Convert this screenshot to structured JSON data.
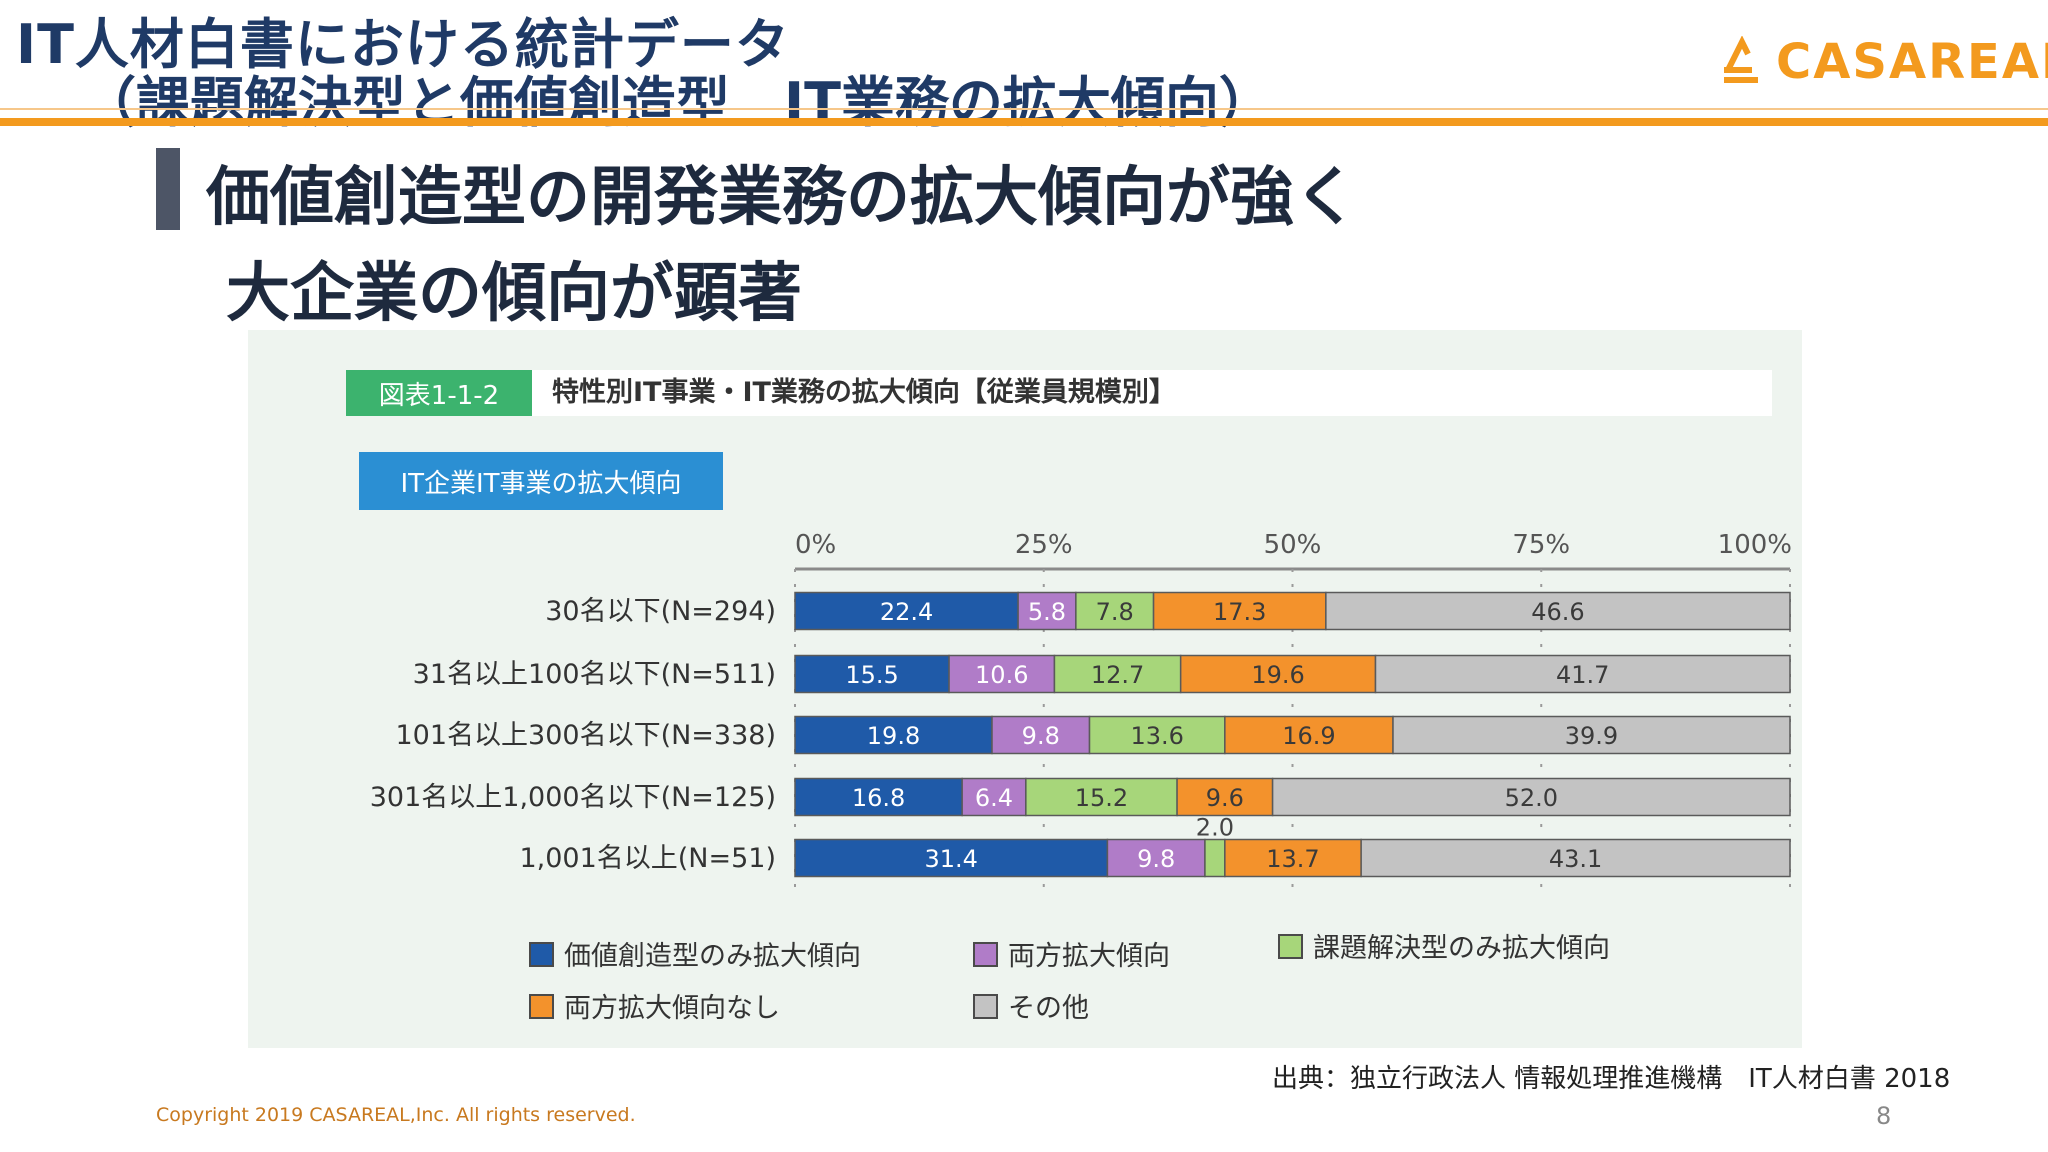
{
  "header": {
    "title_line1": "IT人材白書における統計データ",
    "title_line2": "（課題解決型と価値創造型　IT業務の拡大傾向）",
    "logo_text": "CASAREAL"
  },
  "headline": {
    "line1": "価値創造型の開発業務の拡大傾向が強く",
    "line2": "大企業の傾向が顕著"
  },
  "figure": {
    "tag": "図表1-1-2",
    "title": "特性別IT事業・IT業務の拡大傾向【従業員規模別】",
    "subtitle_tag": "IT企業IT事業の拡大傾向"
  },
  "chart_data": {
    "type": "bar",
    "orientation": "horizontal",
    "stacked": true,
    "percent_stacked": true,
    "xlim": [
      0,
      100
    ],
    "x_ticks": [
      "0%",
      "25%",
      "50%",
      "75%",
      "100%"
    ],
    "categories": [
      "30名以下(N=294)",
      "31名以上100名以下(N=511)",
      "101名以上300名以下(N=338)",
      "301名以上1,000名以下(N=125)",
      "1,001名以上(N=51)"
    ],
    "series": [
      {
        "name": "価値創造型のみ拡大傾向",
        "color": "#1f5aa8",
        "values": [
          22.4,
          15.5,
          19.8,
          16.8,
          31.4
        ],
        "labels": [
          "22.4",
          "15.5",
          "19.8",
          "16.8",
          "31.4"
        ]
      },
      {
        "name": "両方拡大傾向",
        "color": "#b07cc8",
        "values": [
          5.8,
          10.6,
          9.8,
          6.4,
          9.8
        ],
        "labels": [
          "5.8",
          "10.6",
          "9.8",
          "6.4",
          "9.8"
        ]
      },
      {
        "name": "課題解決型のみ拡大傾向",
        "color": "#a7d67a",
        "values": [
          7.8,
          12.7,
          13.6,
          15.2,
          2.0
        ],
        "labels": [
          "7.8",
          "12.7",
          "13.6",
          "15.2",
          "2.0"
        ]
      },
      {
        "name": "両方拡大傾向なし",
        "color": "#f3922c",
        "values": [
          17.3,
          19.6,
          16.9,
          9.6,
          13.7
        ],
        "labels": [
          "17.3",
          "19.6",
          "16.9",
          "9.6",
          "13.7"
        ]
      },
      {
        "name": "その他",
        "color": "#c3c3c3",
        "values": [
          46.6,
          41.7,
          39.9,
          52.0,
          43.1
        ],
        "labels": [
          "46.6",
          "41.7",
          "39.9",
          "52.0",
          "43.1"
        ]
      }
    ],
    "legend_position": "bottom",
    "grid": true
  },
  "footer": {
    "source": "出典：独立行政法人 情報処理推進機構　IT人材白書 2018",
    "copyright": "Copyright 2019 CASAREAL,Inc. All rights reserved.",
    "page_number": "8"
  }
}
